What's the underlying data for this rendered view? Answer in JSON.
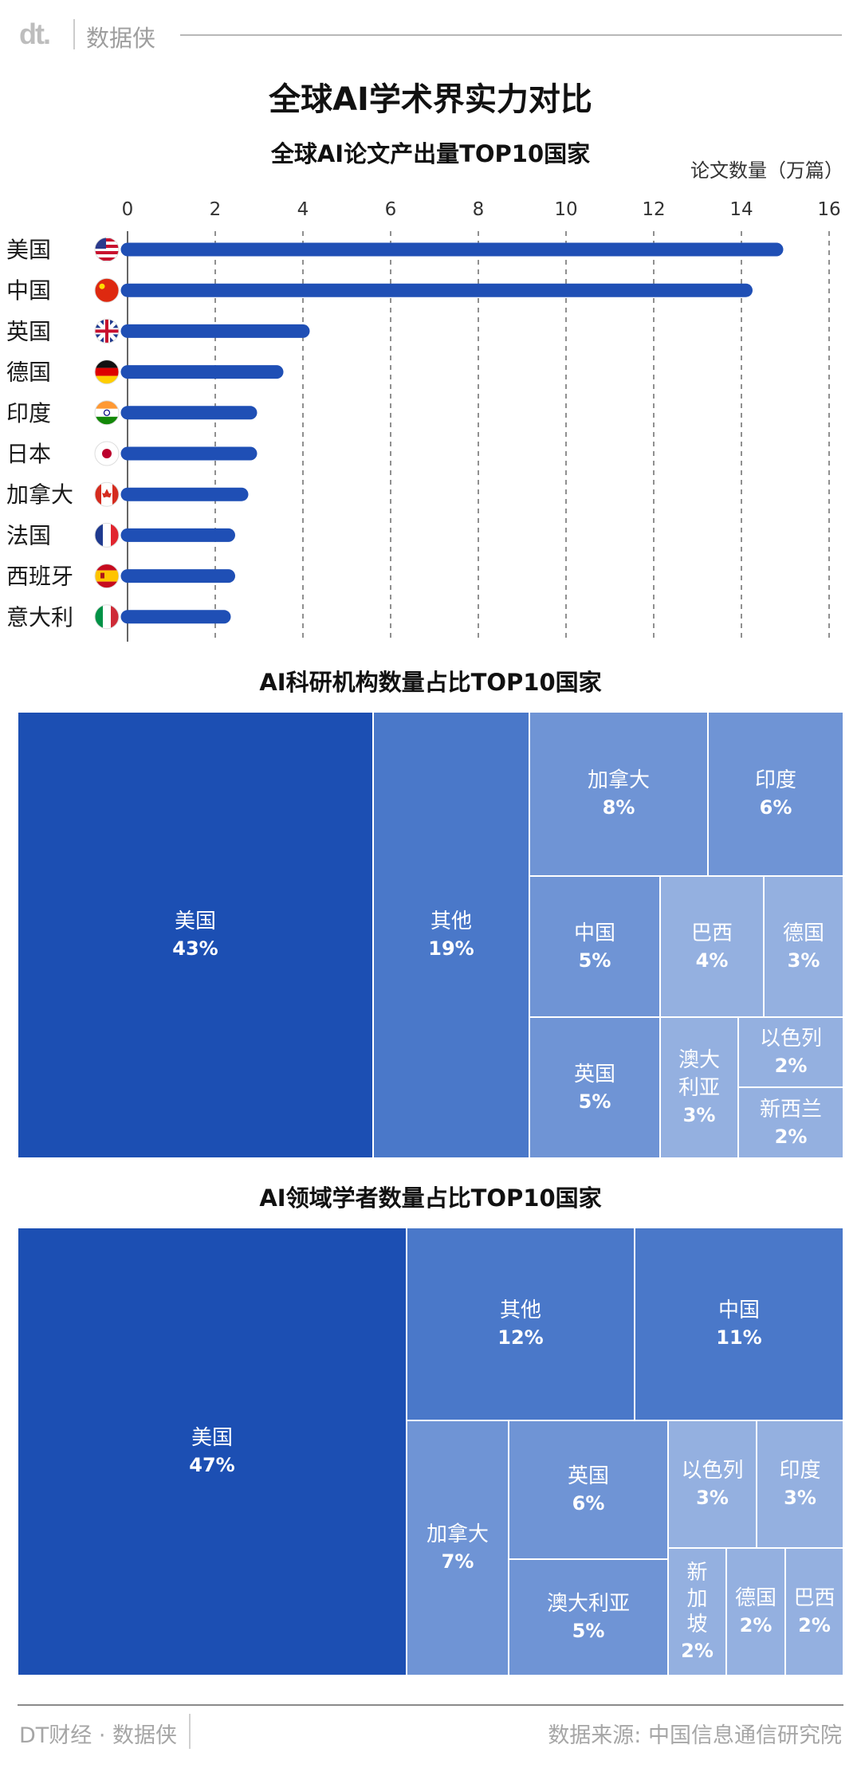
{
  "header": {
    "logo": "dt.",
    "brand": "数据侠"
  },
  "title": "全球AI学术界实力对比",
  "colors": {
    "bar": "#1f4fb5",
    "treemap_dark": "#1c4fb3",
    "treemap_mid": "#4a78c9",
    "treemap_light": "#6f94d5",
    "treemap_pale": "#94b0e0"
  },
  "chart_data": [
    {
      "type": "bar",
      "title": "全球AI论文产出量TOP10国家",
      "unit": "论文数量（万篇）",
      "categories": [
        "美国",
        "中国",
        "英国",
        "德国",
        "印度",
        "日本",
        "加拿大",
        "法国",
        "西班牙",
        "意大利"
      ],
      "values": [
        14.8,
        14.1,
        4.0,
        3.4,
        2.8,
        2.8,
        2.6,
        2.3,
        2.3,
        2.2
      ],
      "xlim": [
        0,
        16
      ],
      "ticks": [
        "0",
        "2",
        "4",
        "6",
        "8",
        "10",
        "12",
        "14",
        "16"
      ],
      "flag_icons": [
        "us-flag-icon",
        "cn-flag-icon",
        "uk-flag-icon",
        "de-flag-icon",
        "in-flag-icon",
        "jp-flag-icon",
        "ca-flag-icon",
        "fr-flag-icon",
        "es-flag-icon",
        "it-flag-icon"
      ],
      "grid": "vertical dashed"
    },
    {
      "type": "treemap",
      "title": "AI科研机构数量占比TOP10国家",
      "items": [
        {
          "name": "美国",
          "value": "43%"
        },
        {
          "name": "其他",
          "value": "19%"
        },
        {
          "name": "加拿大",
          "value": "8%"
        },
        {
          "name": "印度",
          "value": "6%"
        },
        {
          "name": "中国",
          "value": "5%"
        },
        {
          "name": "巴西",
          "value": "4%"
        },
        {
          "name": "德国",
          "value": "3%"
        },
        {
          "name": "英国",
          "value": "5%"
        },
        {
          "name": "澳大利亚",
          "value": "3%"
        },
        {
          "name": "以色列",
          "value": "2%"
        },
        {
          "name": "新西兰",
          "value": "2%"
        }
      ]
    },
    {
      "type": "treemap",
      "title": "AI领域学者数量占比TOP10国家",
      "items": [
        {
          "name": "美国",
          "value": "47%"
        },
        {
          "name": "其他",
          "value": "12%"
        },
        {
          "name": "中国",
          "value": "11%"
        },
        {
          "name": "加拿大",
          "value": "7%"
        },
        {
          "name": "英国",
          "value": "6%"
        },
        {
          "name": "以色列",
          "value": "3%"
        },
        {
          "name": "印度",
          "value": "3%"
        },
        {
          "name": "澳大利亚",
          "value": "5%"
        },
        {
          "name": "新加坡",
          "value": "2%"
        },
        {
          "name": "德国",
          "value": "2%"
        },
        {
          "name": "巴西",
          "value": "2%"
        }
      ]
    }
  ],
  "footer": {
    "left": "DT财经 · 数据侠",
    "right": "数据来源: 中国信息通信研究院"
  }
}
